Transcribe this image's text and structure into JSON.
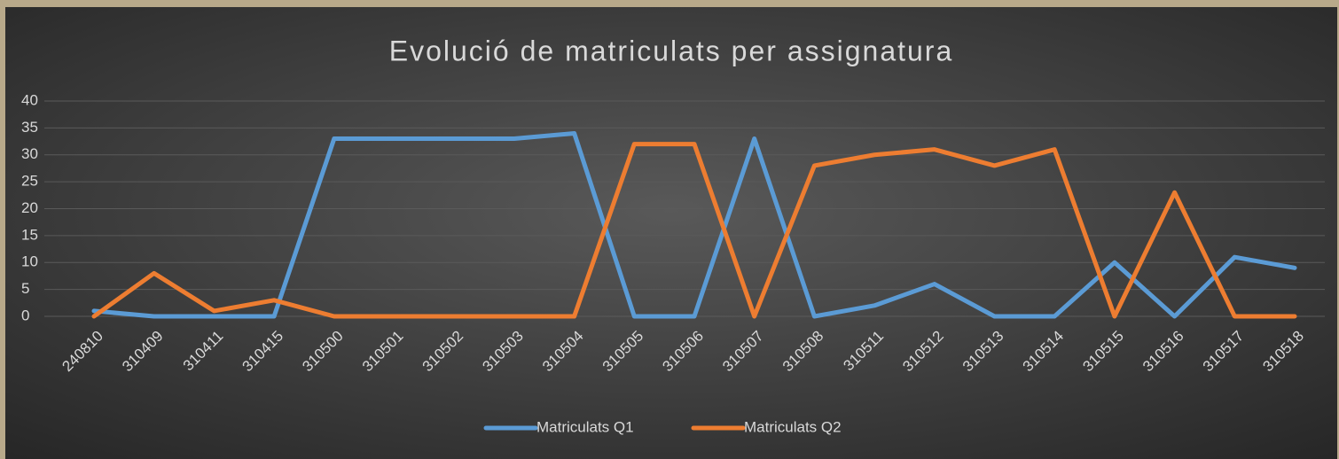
{
  "chart_data": {
    "type": "line",
    "title": "Evolució de matriculats per assignatura",
    "categories": [
      "240810",
      "310409",
      "310411",
      "310415",
      "310500",
      "310501",
      "310502",
      "310503",
      "310504",
      "310505",
      "310506",
      "310507",
      "310508",
      "310511",
      "310512",
      "310513",
      "310514",
      "310515",
      "310516",
      "310517",
      "310518"
    ],
    "series": [
      {
        "name": "Matriculats Q1",
        "color": "#5b9bd5",
        "values": [
          1,
          0,
          0,
          0,
          33,
          33,
          33,
          33,
          34,
          0,
          0,
          33,
          0,
          2,
          6,
          0,
          0,
          10,
          0,
          11,
          9
        ]
      },
      {
        "name": "Matriculats Q2",
        "color": "#ed7d31",
        "values": [
          0,
          8,
          1,
          3,
          0,
          0,
          0,
          0,
          0,
          32,
          32,
          0,
          28,
          30,
          31,
          28,
          31,
          0,
          23,
          0,
          0
        ]
      }
    ],
    "ylim": [
      0,
      40
    ],
    "yticks": [
      0,
      5,
      10,
      15,
      20,
      25,
      30,
      35,
      40
    ],
    "grid": true,
    "legend": "bottom"
  }
}
